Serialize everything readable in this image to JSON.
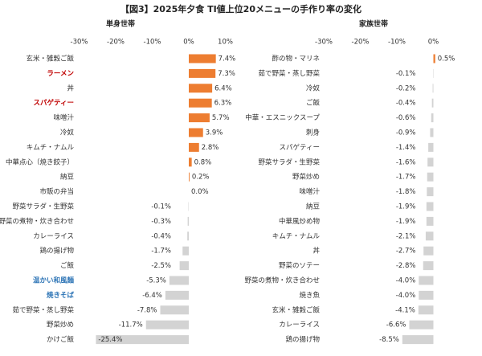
{
  "title": "【図3】2025年夕食 TI値上位20メニューの手作り率の変化",
  "chart_data": [
    {
      "type": "bar",
      "orientation": "horizontal",
      "subtitle": "単身世帯",
      "categories": [
        "玄米・雑穀ご飯",
        "ラーメン",
        "丼",
        "スパゲティー",
        "味噌汁",
        "冷奴",
        "キムチ・ナムル",
        "中華点心（焼き餃子）",
        "納豆",
        "市販の弁当",
        "野菜サラダ・生野菜",
        "野菜の煮物・炊き合わせ",
        "カレーライス",
        "鶏の揚げ物",
        "ご飯",
        "温かい和風麺",
        "焼きそば",
        "茹で野菜・蒸し野菜",
        "野菜炒め",
        "かけご飯"
      ],
      "category_colors": [
        "#333333",
        "#c00000",
        "#333333",
        "#c00000",
        "#333333",
        "#333333",
        "#333333",
        "#333333",
        "#333333",
        "#333333",
        "#333333",
        "#333333",
        "#333333",
        "#333333",
        "#333333",
        "#2e75b6",
        "#2e75b6",
        "#333333",
        "#333333",
        "#333333"
      ],
      "values": [
        7.4,
        7.3,
        6.4,
        6.3,
        5.7,
        3.9,
        2.8,
        0.8,
        0.2,
        0.0,
        -0.1,
        -0.3,
        -0.4,
        -1.7,
        -2.5,
        -5.3,
        -6.4,
        -7.8,
        -11.7,
        -25.4
      ],
      "value_labels": [
        "7.4%",
        "7.3%",
        "6.4%",
        "6.3%",
        "5.7%",
        "3.9%",
        "2.8%",
        "0.8%",
        "0.2%",
        "0.0%",
        "-0.1%",
        "-0.3%",
        "-0.4%",
        "-1.7%",
        "-2.5%",
        "-5.3%",
        "-6.4%",
        "-7.8%",
        "-11.7%",
        "-25.4%"
      ],
      "positive_color": "#ed7d31",
      "negative_color": "#d3d3d3",
      "xlim": [
        -30,
        10
      ],
      "xticks": [
        {
          "value": -30,
          "label": "-30%"
        },
        {
          "value": -20,
          "label": "-20%"
        },
        {
          "value": -10,
          "label": "-10%"
        },
        {
          "value": 0,
          "label": "0%"
        },
        {
          "value": 10,
          "label": "10%"
        }
      ]
    },
    {
      "type": "bar",
      "orientation": "horizontal",
      "subtitle": "家族世帯",
      "categories": [
        "酢の物・マリネ",
        "茹で野菜・蒸し野菜",
        "冷奴",
        "ご飯",
        "中華・エスニックスープ",
        "刺身",
        "スパゲティー",
        "野菜サラダ・生野菜",
        "野菜炒め",
        "味噌汁",
        "納豆",
        "中華風炒め物",
        "キムチ・ナムル",
        "丼",
        "野菜のソテー",
        "野菜の煮物・炊き合わせ",
        "焼き魚",
        "玄米・雑穀ご飯",
        "カレーライス",
        "鶏の揚げ物"
      ],
      "category_colors": [
        "#333333",
        "#333333",
        "#333333",
        "#333333",
        "#333333",
        "#333333",
        "#333333",
        "#333333",
        "#333333",
        "#333333",
        "#333333",
        "#333333",
        "#333333",
        "#333333",
        "#333333",
        "#333333",
        "#333333",
        "#333333",
        "#333333",
        "#333333"
      ],
      "values": [
        0.5,
        -0.1,
        -0.2,
        -0.4,
        -0.6,
        -0.9,
        -1.4,
        -1.6,
        -1.7,
        -1.8,
        -1.9,
        -1.9,
        -2.1,
        -2.7,
        -2.8,
        -4.0,
        -4.0,
        -4.1,
        -6.6,
        -8.5
      ],
      "value_labels": [
        "0.5%",
        "-0.1%",
        "-0.2%",
        "-0.4%",
        "-0.6%",
        "-0.9%",
        "-1.4%",
        "-1.6%",
        "-1.7%",
        "-1.8%",
        "-1.9%",
        "-1.9%",
        "-2.1%",
        "-2.7%",
        "-2.8%",
        "-4.0%",
        "-4.0%",
        "-4.1%",
        "-6.6%",
        "-8.5%"
      ],
      "positive_color": "#ed7d31",
      "negative_color": "#d3d3d3",
      "xlim": [
        -30,
        10
      ],
      "xticks": [
        {
          "value": -30,
          "label": "-30%"
        },
        {
          "value": -20,
          "label": "-20%"
        },
        {
          "value": -10,
          "label": "-10%"
        },
        {
          "value": 0,
          "label": "0%"
        }
      ]
    }
  ]
}
